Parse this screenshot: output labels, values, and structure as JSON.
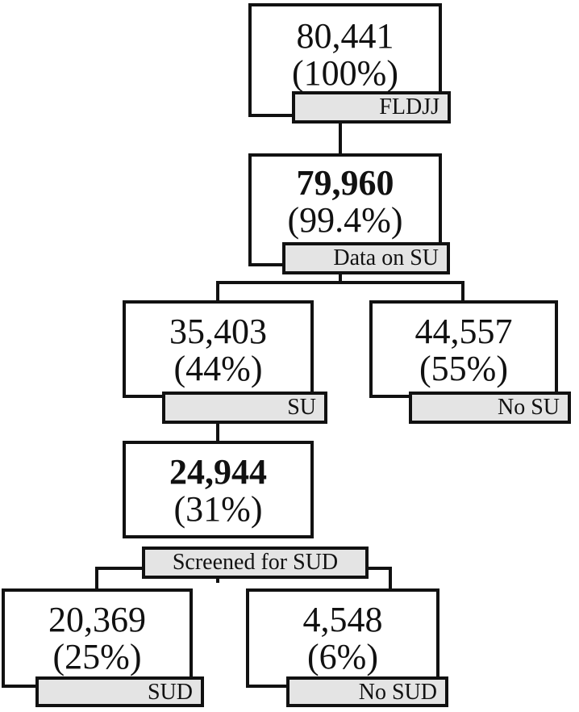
{
  "nodes": {
    "root": {
      "count": "80,441",
      "percent": "(100%)",
      "label": "FLDJJ"
    },
    "data_su": {
      "count": "79,960",
      "percent": "(99.4%)",
      "label": "Data on SU"
    },
    "su": {
      "count": "35,403",
      "percent": "(44%)",
      "label": "SU"
    },
    "no_su": {
      "count": "44,557",
      "percent": "(55%)",
      "label": "No SU"
    },
    "screened": {
      "count": "24,944",
      "percent": "(31%)",
      "label": "Screened for SUD"
    },
    "sud": {
      "count": "20,369",
      "percent": "(25%)",
      "label": "SUD"
    },
    "no_sud": {
      "count": "4,548",
      "percent": "(6%)",
      "label": "No SUD"
    }
  },
  "colors": {
    "border": "#111111",
    "tag_fill": "#e4e4e4",
    "box_fill": "#ffffff"
  }
}
